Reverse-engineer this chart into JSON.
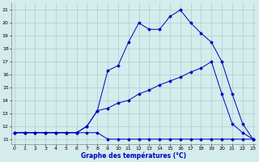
{
  "xlabel": "Graphe des températures (°C)",
  "bg_color": "#d4ecec",
  "grid_color": "#a0c8c8",
  "line_color": "#0000bb",
  "x_ticks": [
    0,
    1,
    2,
    3,
    4,
    5,
    6,
    7,
    8,
    9,
    10,
    11,
    12,
    13,
    14,
    15,
    16,
    17,
    18,
    19,
    20,
    21,
    22,
    23
  ],
  "y_ticks": [
    11,
    12,
    13,
    14,
    15,
    16,
    17,
    18,
    19,
    20,
    21
  ],
  "xlim": [
    -0.3,
    23.3
  ],
  "ylim": [
    10.6,
    21.6
  ],
  "series": [
    {
      "x": [
        0,
        1,
        2,
        3,
        4,
        5,
        6,
        7,
        8,
        9,
        10,
        11,
        12,
        13,
        14,
        15,
        16,
        17,
        18,
        19,
        20,
        21,
        22,
        23
      ],
      "y": [
        11.5,
        11.5,
        11.5,
        11.5,
        11.5,
        11.5,
        11.5,
        11.5,
        11.5,
        11.0,
        11.0,
        11.0,
        11.0,
        11.0,
        11.0,
        11.0,
        11.0,
        11.0,
        11.0,
        11.0,
        11.0,
        11.0,
        11.0,
        11.0
      ]
    },
    {
      "x": [
        0,
        1,
        2,
        3,
        4,
        5,
        6,
        7,
        8,
        9,
        10,
        11,
        12,
        13,
        14,
        15,
        16,
        17,
        18,
        19,
        20,
        21,
        22,
        23
      ],
      "y": [
        11.5,
        11.5,
        11.5,
        11.5,
        11.5,
        11.5,
        11.5,
        12.0,
        13.2,
        13.4,
        13.8,
        14.0,
        14.5,
        14.8,
        15.2,
        15.5,
        15.8,
        16.2,
        16.5,
        17.0,
        14.5,
        12.2,
        11.5,
        11.0
      ]
    },
    {
      "x": [
        0,
        1,
        2,
        3,
        4,
        5,
        6,
        7,
        8,
        9,
        10,
        11,
        12,
        13,
        14,
        15,
        16,
        17,
        18,
        19,
        20,
        21,
        22,
        23
      ],
      "y": [
        11.5,
        11.5,
        11.5,
        11.5,
        11.5,
        11.5,
        11.5,
        12.0,
        13.2,
        16.3,
        16.7,
        18.5,
        20.0,
        19.5,
        19.5,
        20.5,
        21.0,
        20.0,
        19.2,
        18.5,
        17.0,
        14.5,
        12.2,
        11.0
      ]
    }
  ]
}
